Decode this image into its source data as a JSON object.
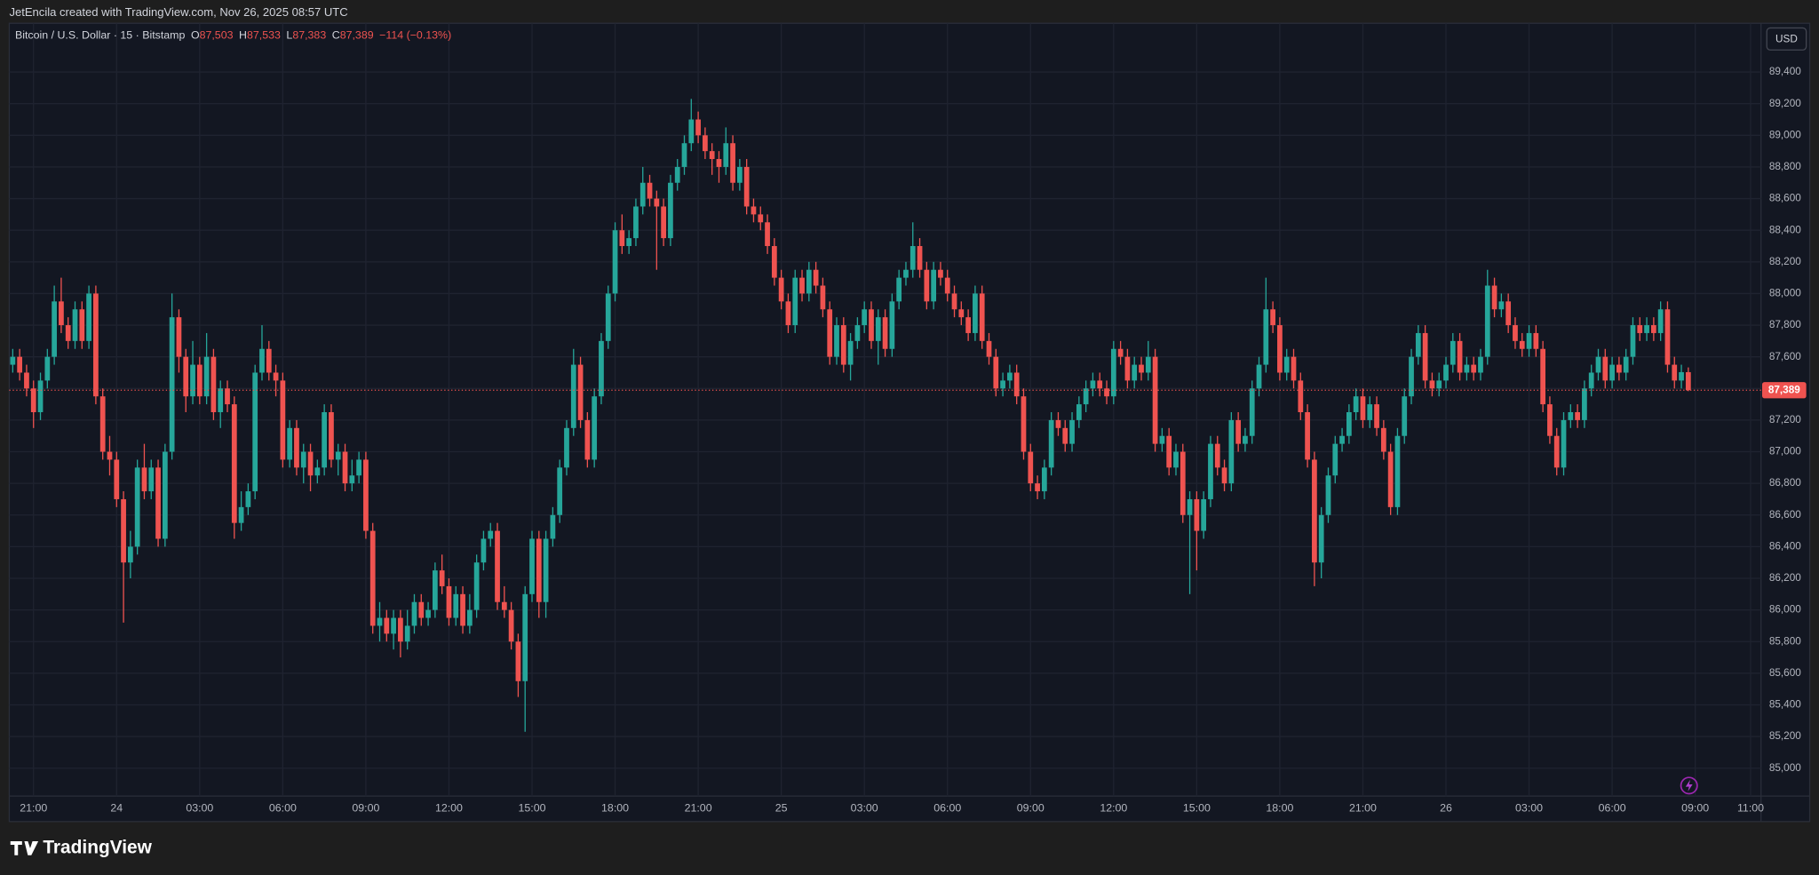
{
  "header": {
    "attribution": "JetEncila created with TradingView.com, Nov 26, 2025 08:57 UTC"
  },
  "footer": {
    "brand": "TradingView"
  },
  "chart_data": {
    "type": "candlestick",
    "title": "Bitcoin / U.S. Dollar · 15 · Bitstamp",
    "currency": "USD",
    "legend": [
      {
        "key": "O",
        "value": "87,503"
      },
      {
        "key": "H",
        "value": "87,533"
      },
      {
        "key": "L",
        "value": "87,383"
      },
      {
        "key": "C",
        "value": "87,389"
      }
    ],
    "change": "−114 (−0.13%)",
    "last_price_label": "87,389",
    "up_color": "#26a69a",
    "down_color": "#ef5350",
    "grid": true,
    "open": [
      87550,
      87600,
      87500,
      87400,
      87250,
      87450,
      87600,
      87950,
      87800,
      87700,
      87900,
      87700,
      88000,
      87350,
      87000,
      86950,
      86700,
      86300,
      86400,
      86900,
      86750,
      86900,
      86450,
      87000,
      87850,
      87600,
      87350,
      87550,
      87350,
      87600,
      87250,
      87400,
      87300,
      86550,
      86650,
      86750,
      87500,
      87650,
      87500,
      87450,
      86950,
      87150,
      86900,
      87000,
      86850,
      86900,
      87250,
      86950,
      87000,
      86800,
      86850,
      86950,
      86500,
      85900,
      85950,
      85850,
      85950,
      85800,
      85900,
      86050,
      85950,
      86000,
      86250,
      86150,
      85950,
      86100,
      85900,
      86000,
      86300,
      86450,
      86500,
      86050,
      86000,
      85800,
      85550,
      86100,
      86450,
      86050,
      86450,
      86600,
      86900,
      87150,
      87550,
      87200,
      86950,
      87350,
      87700,
      88000,
      88400,
      88300,
      88350,
      88550,
      88700,
      88600,
      88550,
      88350,
      88700,
      88800,
      88950,
      89100,
      89000,
      88900,
      88850,
      88800,
      88950,
      88700,
      88800,
      88550,
      88500,
      88450,
      88300,
      88100,
      87950,
      87800,
      88100,
      88000,
      88150,
      88050,
      87900,
      87600,
      87800,
      87550,
      87700,
      87800,
      87900,
      87700,
      87850,
      87650,
      87950,
      88100,
      88150,
      88300,
      88150,
      87950,
      88150,
      88100,
      88000,
      87900,
      87850,
      87750,
      88000,
      87700,
      87600,
      87400,
      87450,
      87500,
      87350,
      87000,
      86800,
      86750,
      86900,
      87200,
      87150,
      87050,
      87200,
      87300,
      87400,
      87450,
      87400,
      87350,
      87650,
      87600,
      87450,
      87550,
      87500,
      87600,
      87050,
      87100,
      86900,
      87000,
      86600,
      86700,
      86500,
      86700,
      87050,
      86900,
      86800,
      87200,
      87050,
      87100,
      87400,
      87550,
      87900,
      87800,
      87500,
      87600,
      87450,
      87250,
      86950,
      86300,
      86600,
      86850,
      87050,
      87100,
      87250,
      87350,
      87200,
      87300,
      87150,
      87000,
      86650,
      87100,
      87350,
      87600,
      87750,
      87450,
      87400,
      87450,
      87550,
      87700,
      87500,
      87550,
      87500,
      87600,
      88050,
      87900,
      87950,
      87800,
      87700,
      87650,
      87750,
      87650,
      87300,
      87100,
      86900,
      87200,
      87250,
      87200,
      87400,
      87500,
      87600,
      87450,
      87550,
      87500,
      87600,
      87800,
      87750,
      87800,
      87750,
      87900,
      87550,
      87450,
      87503
    ],
    "high": [
      87650,
      87650,
      87550,
      87450,
      87500,
      87650,
      88050,
      88100,
      87850,
      87950,
      87950,
      88050,
      88050,
      87400,
      87100,
      87000,
      86750,
      86500,
      86950,
      87050,
      86950,
      86950,
      87050,
      88000,
      87900,
      87650,
      87700,
      87600,
      87750,
      87650,
      87450,
      87450,
      87350,
      86750,
      86800,
      87550,
      87800,
      87700,
      87550,
      87500,
      87200,
      87200,
      87050,
      87050,
      86950,
      87300,
      87300,
      87050,
      87050,
      86950,
      87000,
      87000,
      86550,
      86050,
      86000,
      86000,
      86000,
      86000,
      86100,
      86100,
      86050,
      86300,
      86350,
      86200,
      86150,
      86150,
      86100,
      86350,
      86500,
      86550,
      86550,
      86150,
      86050,
      85850,
      86150,
      86500,
      86500,
      86500,
      86650,
      86950,
      87200,
      87650,
      87600,
      87250,
      87400,
      87750,
      88050,
      88450,
      88500,
      88400,
      88600,
      88800,
      88750,
      88650,
      88600,
      88750,
      88850,
      89000,
      89230,
      89150,
      89050,
      88950,
      88900,
      89050,
      89000,
      88850,
      88850,
      88600,
      88550,
      88500,
      88350,
      88150,
      88000,
      88150,
      88150,
      88200,
      88200,
      88100,
      87950,
      87850,
      87850,
      87750,
      87850,
      87950,
      87950,
      87900,
      87900,
      88000,
      88150,
      88200,
      88450,
      88350,
      88200,
      88200,
      88200,
      88150,
      88050,
      87950,
      87900,
      88050,
      88050,
      87750,
      87650,
      87500,
      87550,
      87550,
      87400,
      87050,
      86850,
      86950,
      87250,
      87250,
      87200,
      87250,
      87350,
      87450,
      87500,
      87500,
      87450,
      87700,
      87700,
      87650,
      87600,
      87600,
      87700,
      87650,
      87150,
      87150,
      87050,
      87050,
      86750,
      86750,
      86750,
      87100,
      87100,
      86950,
      87250,
      87250,
      87150,
      87450,
      87600,
      88100,
      87950,
      87850,
      87650,
      87650,
      87500,
      87300,
      87000,
      86650,
      86900,
      87100,
      87150,
      87300,
      87400,
      87400,
      87350,
      87350,
      87200,
      87050,
      87150,
      87400,
      87650,
      87800,
      87800,
      87500,
      87500,
      87600,
      87750,
      87750,
      87600,
      87600,
      87650,
      88150,
      88100,
      88000,
      88000,
      87850,
      87750,
      87800,
      87800,
      87700,
      87350,
      87150,
      87250,
      87300,
      87300,
      87450,
      87550,
      87650,
      87650,
      87600,
      87600,
      87650,
      87850,
      87850,
      87850,
      87850,
      87950,
      87950,
      87600,
      87550,
      87533
    ],
    "low": [
      87500,
      87450,
      87350,
      87150,
      87200,
      87400,
      87550,
      87750,
      87650,
      87650,
      87650,
      87650,
      87300,
      86950,
      86850,
      86650,
      85920,
      86200,
      86350,
      86700,
      86700,
      86400,
      86400,
      86950,
      87500,
      87250,
      87300,
      87300,
      87300,
      87200,
      87150,
      87250,
      86450,
      86500,
      86600,
      86700,
      87450,
      87450,
      87350,
      86900,
      86900,
      86850,
      86800,
      86750,
      86800,
      86850,
      86900,
      86850,
      86750,
      86750,
      86800,
      86450,
      85850,
      85800,
      85800,
      85750,
      85700,
      85750,
      85850,
      85900,
      85900,
      85950,
      86100,
      85900,
      85900,
      85850,
      85850,
      85950,
      86250,
      86400,
      86000,
      85950,
      85750,
      85450,
      85230,
      86050,
      85950,
      85950,
      86400,
      86550,
      86850,
      87100,
      87150,
      86900,
      86900,
      87300,
      87650,
      87950,
      88250,
      88250,
      88300,
      88500,
      88550,
      88150,
      88300,
      88300,
      88650,
      88750,
      88900,
      88950,
      88850,
      88750,
      88700,
      88750,
      88650,
      88650,
      88500,
      88450,
      88400,
      88250,
      88050,
      87900,
      87750,
      87750,
      87950,
      87950,
      88000,
      87850,
      87550,
      87550,
      87500,
      87450,
      87650,
      87750,
      87650,
      87550,
      87600,
      87600,
      87900,
      88050,
      88100,
      88100,
      87900,
      87900,
      88050,
      87950,
      87850,
      87800,
      87700,
      87700,
      87650,
      87550,
      87350,
      87350,
      87400,
      87300,
      86950,
      86750,
      86700,
      86700,
      86850,
      87100,
      87000,
      87000,
      87150,
      87250,
      87350,
      87350,
      87300,
      87300,
      87550,
      87400,
      87400,
      87450,
      87450,
      87000,
      87000,
      86850,
      86850,
      86550,
      86100,
      86250,
      86450,
      86650,
      86850,
      86750,
      86750,
      87000,
      87000,
      87050,
      87350,
      87500,
      87750,
      87450,
      87450,
      87400,
      87200,
      86900,
      86150,
      86200,
      86550,
      86800,
      87000,
      87050,
      87200,
      87150,
      87150,
      87100,
      86950,
      86600,
      86600,
      87050,
      87300,
      87550,
      87400,
      87350,
      87350,
      87400,
      87500,
      87450,
      87450,
      87450,
      87450,
      87550,
      87850,
      87850,
      87750,
      87650,
      87600,
      87600,
      87600,
      87250,
      87050,
      86850,
      86850,
      87150,
      87150,
      87150,
      87350,
      87450,
      87400,
      87400,
      87450,
      87450,
      87550,
      87700,
      87700,
      87700,
      87700,
      87500,
      87400,
      87400,
      87383
    ],
    "close": [
      87600,
      87500,
      87400,
      87250,
      87450,
      87600,
      87950,
      87800,
      87700,
      87900,
      87700,
      88000,
      87350,
      87000,
      86950,
      86700,
      86300,
      86400,
      86900,
      86750,
      86900,
      86450,
      87000,
      87850,
      87600,
      87350,
      87550,
      87350,
      87600,
      87250,
      87400,
      87300,
      86550,
      86650,
      86750,
      87500,
      87650,
      87500,
      87450,
      86950,
      87150,
      86900,
      87000,
      86850,
      86900,
      87250,
      86950,
      87000,
      86800,
      86850,
      86950,
      86500,
      85900,
      85950,
      85850,
      85950,
      85800,
      85900,
      86050,
      85950,
      86000,
      86250,
      86150,
      85950,
      86100,
      85900,
      86000,
      86300,
      86450,
      86500,
      86050,
      86000,
      85800,
      85550,
      86100,
      86450,
      86050,
      86450,
      86600,
      86900,
      87150,
      87550,
      87200,
      86950,
      87350,
      87700,
      88000,
      88400,
      88300,
      88350,
      88550,
      88700,
      88600,
      88550,
      88350,
      88700,
      88800,
      88950,
      89100,
      89000,
      88900,
      88850,
      88800,
      88950,
      88700,
      88800,
      88550,
      88500,
      88450,
      88300,
      88100,
      87950,
      87800,
      88100,
      88000,
      88150,
      88050,
      87900,
      87600,
      87800,
      87550,
      87700,
      87800,
      87900,
      87700,
      87850,
      87650,
      87950,
      88100,
      88150,
      88300,
      88150,
      87950,
      88150,
      88100,
      88000,
      87900,
      87850,
      87750,
      88000,
      87700,
      87600,
      87400,
      87450,
      87500,
      87350,
      87000,
      86800,
      86750,
      86900,
      87200,
      87150,
      87050,
      87200,
      87300,
      87400,
      87450,
      87400,
      87350,
      87650,
      87600,
      87450,
      87550,
      87500,
      87600,
      87050,
      87100,
      86900,
      87000,
      86600,
      86700,
      86500,
      86700,
      87050,
      86900,
      86800,
      87200,
      87050,
      87100,
      87400,
      87550,
      87900,
      87800,
      87500,
      87600,
      87450,
      87250,
      86950,
      86300,
      86600,
      86850,
      87050,
      87100,
      87250,
      87350,
      87200,
      87300,
      87150,
      87000,
      86650,
      87100,
      87350,
      87600,
      87750,
      87450,
      87400,
      87450,
      87550,
      87700,
      87500,
      87550,
      87500,
      87600,
      88050,
      87900,
      87950,
      87800,
      87700,
      87650,
      87750,
      87650,
      87300,
      87100,
      86900,
      87200,
      87250,
      87200,
      87400,
      87500,
      87600,
      87450,
      87550,
      87500,
      87600,
      87800,
      87750,
      87800,
      87750,
      87900,
      87550,
      87450,
      87503,
      87389
    ],
    "xlim": [
      -0.5,
      252.5
    ],
    "xticks": [
      {
        "value": 3,
        "label": "21:00"
      },
      {
        "value": 15,
        "label": "24"
      },
      {
        "value": 27,
        "label": "03:00"
      },
      {
        "value": 39,
        "label": "06:00"
      },
      {
        "value": 51,
        "label": "09:00"
      },
      {
        "value": 63,
        "label": "12:00"
      },
      {
        "value": 75,
        "label": "15:00"
      },
      {
        "value": 87,
        "label": "18:00"
      },
      {
        "value": 99,
        "label": "21:00"
      },
      {
        "value": 111,
        "label": "25"
      },
      {
        "value": 123,
        "label": "03:00"
      },
      {
        "value": 135,
        "label": "06:00"
      },
      {
        "value": 147,
        "label": "09:00"
      },
      {
        "value": 159,
        "label": "12:00"
      },
      {
        "value": 171,
        "label": "15:00"
      },
      {
        "value": 183,
        "label": "18:00"
      },
      {
        "value": 195,
        "label": "21:00"
      },
      {
        "value": 207,
        "label": "26"
      },
      {
        "value": 219,
        "label": "03:00"
      },
      {
        "value": 231,
        "label": "06:00"
      },
      {
        "value": 243,
        "label": "09:00"
      },
      {
        "value": 251,
        "label": "11:00"
      }
    ],
    "ylim": [
      84824,
      89708
    ],
    "yticks": [
      {
        "value": 85000,
        "label": "85,000"
      },
      {
        "value": 85200,
        "label": "85,200"
      },
      {
        "value": 85400,
        "label": "85,400"
      },
      {
        "value": 85600,
        "label": "85,600"
      },
      {
        "value": 85800,
        "label": "85,800"
      },
      {
        "value": 86000,
        "label": "86,000"
      },
      {
        "value": 86200,
        "label": "86,200"
      },
      {
        "value": 86400,
        "label": "86,400"
      },
      {
        "value": 86600,
        "label": "86,600"
      },
      {
        "value": 86800,
        "label": "86,800"
      },
      {
        "value": 87000,
        "label": "87,000"
      },
      {
        "value": 87200,
        "label": "87,200"
      },
      {
        "value": 87400,
        "label": "87,400"
      },
      {
        "value": 87600,
        "label": "87,600"
      },
      {
        "value": 87800,
        "label": "87,800"
      },
      {
        "value": 88000,
        "label": "88,000"
      },
      {
        "value": 88200,
        "label": "88,200"
      },
      {
        "value": 88400,
        "label": "88,400"
      },
      {
        "value": 88600,
        "label": "88,600"
      },
      {
        "value": 88800,
        "label": "88,800"
      },
      {
        "value": 89000,
        "label": "89,000"
      },
      {
        "value": 89200,
        "label": "89,200"
      },
      {
        "value": 89400,
        "label": "89,400"
      }
    ]
  }
}
